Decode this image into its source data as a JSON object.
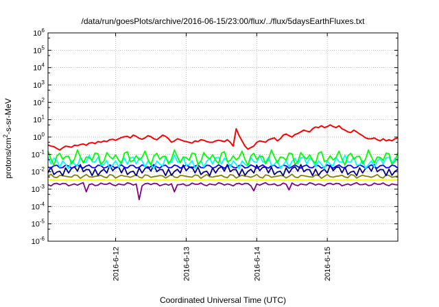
{
  "chart_data": {
    "type": "line",
    "title": "/data/run/goesPlots/archive/2016-06-15/23:00/flux/../flux/5daysEarthFluxes.txt",
    "xlabel": "Coordinated Universal Time (UTC)",
    "ylabel": {
      "main": "protons/cm",
      "sup": "2",
      "rest": "-s-sr-MeV"
    },
    "yscale": "log",
    "ylim": [
      1e-06,
      1000000.0
    ],
    "y_ticks": [
      {
        "value": 1e-06,
        "base": "10",
        "exp": "-6"
      },
      {
        "value": 1e-05,
        "base": "10",
        "exp": "-5"
      },
      {
        "value": 0.0001,
        "base": "10",
        "exp": "-4"
      },
      {
        "value": 0.001,
        "base": "10",
        "exp": "-3"
      },
      {
        "value": 0.01,
        "base": "10",
        "exp": "-2"
      },
      {
        "value": 0.1,
        "base": "10",
        "exp": "-1"
      },
      {
        "value": 1,
        "base": "10",
        "exp": "0"
      },
      {
        "value": 10,
        "base": "10",
        "exp": "1"
      },
      {
        "value": 100,
        "base": "10",
        "exp": "2"
      },
      {
        "value": 1000,
        "base": "10",
        "exp": "3"
      },
      {
        "value": 10000,
        "base": "10",
        "exp": "4"
      },
      {
        "value": 100000,
        "base": "10",
        "exp": "5"
      },
      {
        "value": 1000000,
        "base": "10",
        "exp": "6"
      }
    ],
    "xlim": [
      "2016-06-11 01:00",
      "2016-06-16 00:00"
    ],
    "x_ticks": [
      {
        "value": "2016-06-12 00:00",
        "label": "2016-6-12"
      },
      {
        "value": "2016-06-13 00:00",
        "label": "2016-6-13"
      },
      {
        "value": "2016-06-14 00:00",
        "label": "2016-6-14"
      },
      {
        "value": "2016-06-15 00:00",
        "label": "2016-6-15"
      }
    ],
    "grid": true,
    "series_time_step_hours": 1,
    "series": [
      {
        "color": "#ff0000",
        "values": [
          0.35,
          0.3,
          0.28,
          0.22,
          0.18,
          0.24,
          0.3,
          0.28,
          0.26,
          0.34,
          0.32,
          0.37,
          0.4,
          0.34,
          0.45,
          0.48,
          0.42,
          0.55,
          0.5,
          0.6,
          0.55,
          0.7,
          0.75,
          0.65,
          0.8,
          0.95,
          1.05,
          1.1,
          0.9,
          1.3,
          1.1,
          0.85,
          0.75,
          0.9,
          1.2,
          1.05,
          0.8,
          0.7,
          0.95,
          1.3,
          1.1,
          0.8,
          0.5,
          0.6,
          0.8,
          0.7,
          0.6,
          0.55,
          0.5,
          0.45,
          0.6,
          0.55,
          0.7,
          0.65,
          0.55,
          0.5,
          0.5,
          0.6,
          0.65,
          0.6,
          0.55,
          0.7,
          0.5,
          0.3,
          3.0,
          1.2,
          0.6,
          0.3,
          0.2,
          0.25,
          0.3,
          0.5,
          0.6,
          0.55,
          0.5,
          0.7,
          0.8,
          0.9,
          0.6,
          0.8,
          1.3,
          1.5,
          1.2,
          1.0,
          1.4,
          1.6,
          2.0,
          2.5,
          2.2,
          2.0,
          3.0,
          3.8,
          3.5,
          4.5,
          3.5,
          4.0,
          5.0,
          4.0,
          3.5,
          4.5,
          3.0,
          2.5,
          2.0,
          1.8,
          2.5,
          2.0,
          1.5,
          1.2,
          0.9,
          0.8,
          0.8,
          0.9,
          0.7,
          0.6,
          0.8,
          0.6,
          0.7,
          0.6,
          0.8,
          0.9,
          0.7,
          0.8,
          1.2,
          1.0,
          0.8,
          0.6,
          0.5,
          0.7,
          0.8,
          1.0,
          1.2,
          1.3,
          1.1,
          1.5,
          1.8,
          2.0,
          2.5,
          3.0,
          3.5,
          3.0,
          4.5,
          3.0,
          4.0,
          5.5,
          4.5,
          2.5,
          5.0,
          6.5,
          5.0,
          0.8,
          5.5,
          4.5,
          1.5,
          1.0,
          1.2,
          1.0,
          0.8,
          0.9,
          0.7,
          0.4,
          0.25,
          0.3,
          0.25,
          0.3,
          0.4,
          0.5,
          0.4,
          0.35,
          0.5,
          0.6,
          0.5,
          0.45,
          0.55,
          0.6,
          0.5,
          0.6,
          0.8,
          1.0,
          1.2,
          1.5,
          2.0,
          2.5,
          3.5,
          3.0,
          4.0,
          3.5,
          3.0,
          2.5,
          2.2,
          2.0,
          2.5,
          2.0,
          1.8,
          1.5,
          1.5,
          1.8,
          2.0,
          1.5,
          1.2,
          1.0,
          0.9,
          0.85,
          0.8,
          0.7,
          0.6,
          0.6,
          0.55
        ]
      },
      {
        "color": "#00ff00",
        "wave": {
          "mean": 0.065,
          "amplitude": 0.45,
          "period_hours": 3.3
        }
      },
      {
        "color": "#00ffff",
        "wave": {
          "mean": 0.036,
          "amplitude": 0.4,
          "period_hours": 2.9
        }
      },
      {
        "color": "#0000ff",
        "wave": {
          "mean": 0.02,
          "amplitude": 0.4,
          "period_hours": 3.7
        }
      },
      {
        "color": "#000080",
        "wave": {
          "mean": 0.012,
          "amplitude": 0.35,
          "period_hours": 2.5
        }
      },
      {
        "color": "#808000",
        "wave": {
          "mean": 0.0055,
          "amplitude": 0.12,
          "period_hours": 4.1
        }
      },
      {
        "color": "#ffff00",
        "wave": {
          "mean": 0.0034,
          "amplitude": 0.02,
          "period_hours": 6.0
        }
      },
      {
        "color": "#800080",
        "wave": {
          "mean": 0.0019,
          "amplitude": 0.1,
          "period_hours": 3.1
        },
        "dips": [
          {
            "time": "2016-06-11 14:00",
            "value": 0.0007
          },
          {
            "time": "2016-06-12 08:00",
            "value": 0.00025
          },
          {
            "time": "2016-06-12 20:00",
            "value": 0.0007
          },
          {
            "time": "2016-06-13 23:00",
            "value": 0.0008
          },
          {
            "time": "2016-06-14 11:00",
            "value": 0.0009
          }
        ]
      }
    ]
  }
}
